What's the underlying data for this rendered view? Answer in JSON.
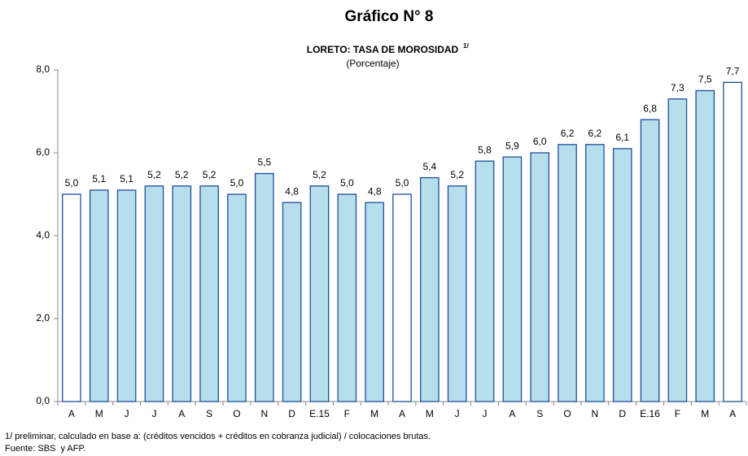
{
  "chart_data": {
    "type": "bar",
    "title": "Gráfico N° 8",
    "subtitle": "LORETO: TASA DE MOROSIDAD",
    "subtitle_note": "1/",
    "unit_label": "(Porcentaje)",
    "categories": [
      "A",
      "M",
      "J",
      "J",
      "A",
      "S",
      "O",
      "N",
      "D",
      "E.15",
      "F",
      "M",
      "A",
      "M",
      "J",
      "J",
      "A",
      "S",
      "O",
      "N",
      "D",
      "E.16",
      "F",
      "M",
      "A"
    ],
    "values": [
      5.0,
      5.1,
      5.1,
      5.2,
      5.2,
      5.2,
      5.0,
      5.5,
      4.8,
      5.2,
      5.0,
      4.8,
      5.0,
      5.4,
      5.2,
      5.8,
      5.9,
      6.0,
      6.2,
      6.2,
      6.1,
      6.8,
      7.3,
      7.5,
      7.7
    ],
    "value_labels": [
      "5,0",
      "5,1",
      "5,1",
      "5,2",
      "5,2",
      "5,2",
      "5,0",
      "5,5",
      "4,8",
      "5,2",
      "5,0",
      "4,8",
      "5,0",
      "5,4",
      "5,2",
      "5,8",
      "5,9",
      "6,0",
      "6,2",
      "6,2",
      "6,1",
      "6,8",
      "7,3",
      "7,5",
      "7,7"
    ],
    "colors": [
      "#ffffff",
      "#b7dfeb",
      "#b7dfeb",
      "#b7dfeb",
      "#b7dfeb",
      "#b7dfeb",
      "#b7dfeb",
      "#b7dfeb",
      "#b7dfeb",
      "#b7dfeb",
      "#b7dfeb",
      "#b7dfeb",
      "#ffffff",
      "#b7dfeb",
      "#b7dfeb",
      "#b7dfeb",
      "#b7dfeb",
      "#b7dfeb",
      "#b7dfeb",
      "#b7dfeb",
      "#b7dfeb",
      "#b7dfeb",
      "#b7dfeb",
      "#b7dfeb",
      "#ffffff"
    ],
    "edge_color": "#1f4e9c",
    "ylim": [
      0,
      8
    ],
    "yticks": [
      {
        "value": 0,
        "label": "0,0"
      },
      {
        "value": 2,
        "label": "2,0"
      },
      {
        "value": 4,
        "label": "4,0"
      },
      {
        "value": 6,
        "label": "6,0"
      },
      {
        "value": 8,
        "label": "8,0"
      }
    ],
    "grid": false,
    "footnotes": [
      "1/ preliminar, calculado en base a: (créditos vencidos + créditos en cobranza judicial) / colocaciones brutas.",
      "Fuente: SBS  y AFP."
    ]
  }
}
